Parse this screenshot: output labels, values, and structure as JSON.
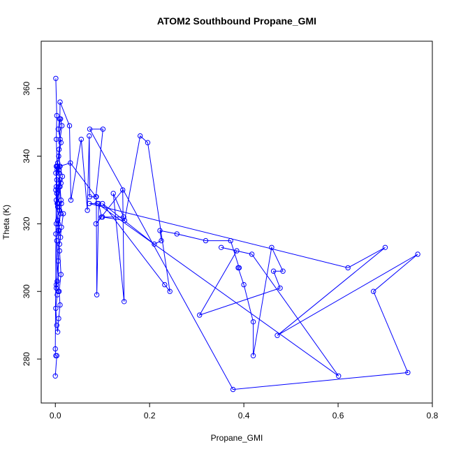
{
  "chart_data": {
    "type": "line",
    "title": "ATOM2 Southbound Propane_GMI",
    "xlabel": "Propane_GMI",
    "ylabel": "Theta (K)",
    "xlim": [
      -0.03,
      0.8
    ],
    "ylim": [
      267,
      374
    ],
    "xticks": [
      0.0,
      0.2,
      0.4,
      0.6,
      0.8
    ],
    "xtick_labels": [
      "0.0",
      "0.2",
      "0.4",
      "0.6",
      "0.8"
    ],
    "yticks": [
      280,
      300,
      320,
      340,
      360
    ],
    "ytick_labels": [
      "280",
      "300",
      "320",
      "340",
      "360"
    ],
    "grid": false,
    "legend": "none",
    "color": "#0000ff",
    "series": [
      {
        "x": [
          0.001,
          0.003,
          0.002,
          0.004,
          0.001,
          0.002,
          0.005,
          0.003,
          0.006,
          0.002,
          0.004,
          0.001,
          0.003,
          0.005,
          0.007,
          0.01,
          0.008,
          0.012,
          0.009,
          0.006,
          0.011,
          0.013,
          0.008,
          0.015,
          0.01,
          0.007,
          0.012,
          0.006,
          0.009,
          0.011,
          0.014,
          0.01,
          0.008,
          0.005,
          0.007,
          0.01,
          0.012,
          0.009,
          0.006,
          0.008,
          0.011,
          0.009,
          0.013,
          0.017,
          0.004,
          0.002,
          0.003,
          0.001,
          0.005,
          0.008,
          0.003,
          0.01,
          0.012,
          0.003,
          0.005,
          0.002,
          0.001,
          0.004,
          0.002,
          0.006,
          0.01,
          0.03,
          0.033,
          0.055,
          0.068,
          0.072,
          0.073,
          0.087,
          0.088,
          0.092,
          0.098,
          0.086,
          0.143,
          0.146,
          0.123,
          0.145,
          0.1,
          0.147,
          0.18,
          0.196,
          0.243,
          0.232,
          0.1,
          0.21,
          0.225,
          0.222,
          0.258,
          0.319,
          0.372,
          0.39,
          0.388,
          0.4,
          0.42,
          0.42,
          0.459,
          0.483,
          0.463,
          0.477,
          0.306,
          0.385,
          0.352,
          0.417,
          0.601,
          0.089,
          0.072,
          0.621,
          0.7,
          0.471,
          0.769,
          0.675,
          0.748,
          0.377,
          0.073,
          0.101,
          0.086,
          0.032,
          0.009,
          0.005,
          0.002,
          0.0,
          0.001,
          0.003,
          0.0
        ],
        "y": [
          363,
          352,
          345,
          336,
          330,
          327,
          321,
          315,
          309,
          302,
          299,
          295,
          290,
          288,
          292,
          296,
          300,
          305,
          312,
          318,
          323,
          326,
          331,
          334,
          337,
          340,
          344,
          348,
          351,
          351,
          349,
          345,
          342,
          338,
          335,
          331,
          327,
          324,
          320,
          318,
          316,
          314,
          319,
          323,
          326,
          331,
          333,
          335,
          337,
          336,
          337,
          333,
          332,
          329,
          325,
          320,
          317,
          303,
          301,
          300,
          356,
          349,
          327,
          345,
          324,
          346,
          328,
          328,
          299,
          326,
          322,
          320,
          330,
          297,
          329,
          322,
          322,
          321,
          346,
          344,
          300,
          302,
          326,
          314,
          315,
          318,
          317,
          315,
          315,
          307,
          307,
          302,
          291,
          281,
          313,
          306,
          306,
          301,
          293,
          312,
          313,
          311,
          275,
          326,
          326,
          307,
          313,
          287,
          311,
          300,
          276,
          271,
          348,
          348,
          328,
          338,
          337,
          326,
          337,
          283,
          281,
          281,
          275
        ]
      }
    ]
  }
}
